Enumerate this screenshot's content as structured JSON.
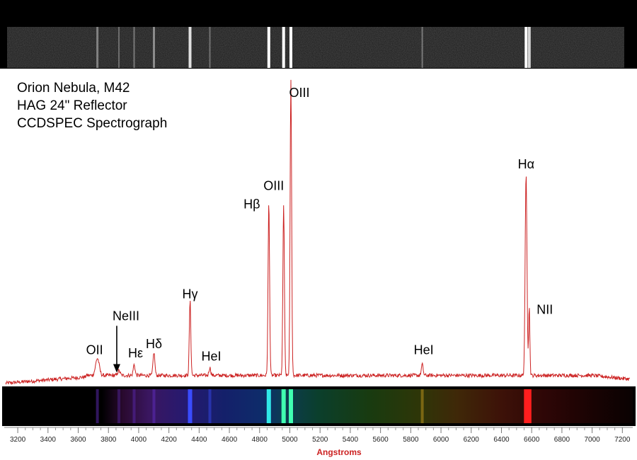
{
  "title_lines": [
    "Orion Nebula, M42",
    "HAG 24\" Reflector",
    "CCDSPEC Spectrograph"
  ],
  "colors": {
    "spectrum_line": "#cc2222",
    "background": "#ffffff",
    "frame": "#000000",
    "xlabel": "#cc2222"
  },
  "chart_data": {
    "type": "line",
    "title": "Orion Nebula, M42 HAG 24\" Reflector CCDSPEC Spectrograph",
    "xlabel": "Angstroms",
    "ylabel": "",
    "xlim": [
      3120,
      7250
    ],
    "ylim": [
      0,
      100
    ],
    "x_ticks": [
      3200,
      3400,
      3600,
      3800,
      4000,
      4200,
      4400,
      4600,
      4800,
      5000,
      5200,
      5400,
      5600,
      5800,
      6000,
      6200,
      6400,
      6600,
      6800,
      7000,
      7200
    ],
    "continuum_level": 4,
    "series": [
      {
        "name": "M42 emission spectrum",
        "lines": [
          {
            "label": "OII",
            "wavelength": 3727,
            "intensity": 5.5,
            "width": 12
          },
          {
            "label": "NeIII",
            "wavelength": 3869,
            "intensity": 1.5,
            "width": 8
          },
          {
            "label": "Hε",
            "wavelength": 3970,
            "intensity": 3.5,
            "width": 6
          },
          {
            "label": "Hδ",
            "wavelength": 4101,
            "intensity": 7.5,
            "width": 6
          },
          {
            "label": "Hγ",
            "wavelength": 4340,
            "intensity": 24,
            "width": 5
          },
          {
            "label": "HeI",
            "wavelength": 4471,
            "intensity": 2.5,
            "width": 6
          },
          {
            "label": "Hβ",
            "wavelength": 4861,
            "intensity": 56,
            "width": 5
          },
          {
            "label": "OIII",
            "wavelength": 4959,
            "intensity": 55,
            "width": 5
          },
          {
            "label": "OIII",
            "wavelength": 5007,
            "intensity": 95,
            "width": 5
          },
          {
            "label": "HeI",
            "wavelength": 5876,
            "intensity": 3.5,
            "width": 6
          },
          {
            "label": "Hα",
            "wavelength": 6563,
            "intensity": 65,
            "width": 6
          },
          {
            "label": "NII",
            "wavelength": 6584,
            "intensity": 22,
            "width": 4
          }
        ]
      }
    ],
    "annotations": [
      {
        "text": "OIII",
        "near_wavelength": 5007,
        "intensity": 92
      },
      {
        "text": "OIII",
        "near_wavelength": 4959,
        "intensity": 62
      },
      {
        "text": "Hβ",
        "near_wavelength": 4861,
        "intensity": 56
      },
      {
        "text": "Hα",
        "near_wavelength": 6563,
        "intensity": 69
      },
      {
        "text": "NII",
        "near_wavelength": 6584,
        "intensity": 22
      },
      {
        "text": "Hγ",
        "near_wavelength": 4340,
        "intensity": 27
      },
      {
        "text": "NeIII",
        "near_wavelength": 3869,
        "intensity": 20,
        "arrow": true
      },
      {
        "text": "Hδ",
        "near_wavelength": 4101,
        "intensity": 11
      },
      {
        "text": "Hε",
        "near_wavelength": 3970,
        "intensity": 8
      },
      {
        "text": "OII",
        "near_wavelength": 3727,
        "intensity": 9
      },
      {
        "text": "HeI",
        "near_wavelength": 4471,
        "intensity": 7
      },
      {
        "text": "HeI",
        "near_wavelength": 5876,
        "intensity": 9
      }
    ]
  }
}
